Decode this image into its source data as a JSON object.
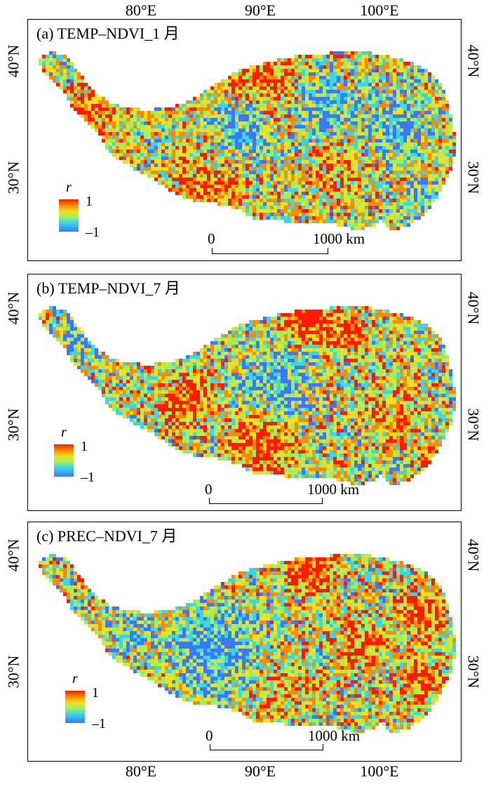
{
  "longitude_labels": [
    "80°E",
    "90°E",
    "100°E"
  ],
  "latitude_labels": [
    "40°N",
    "30°N"
  ],
  "colorbar": {
    "symbol": "r",
    "max_label": "1",
    "min_label": "–1",
    "colors": [
      "#ff1a00",
      "#ff8a00",
      "#f0e020",
      "#9cf060",
      "#3ad7e6",
      "#3a78ff"
    ]
  },
  "scale_bar": {
    "zero_label": "0",
    "end_label": "1000 km"
  },
  "panels": [
    {
      "title": "(a) TEMP–NDVI_1 月"
    },
    {
      "title": "(b) TEMP–NDVI_7 月"
    },
    {
      "title": "(c) PREC–NDVI_7 月"
    }
  ]
}
